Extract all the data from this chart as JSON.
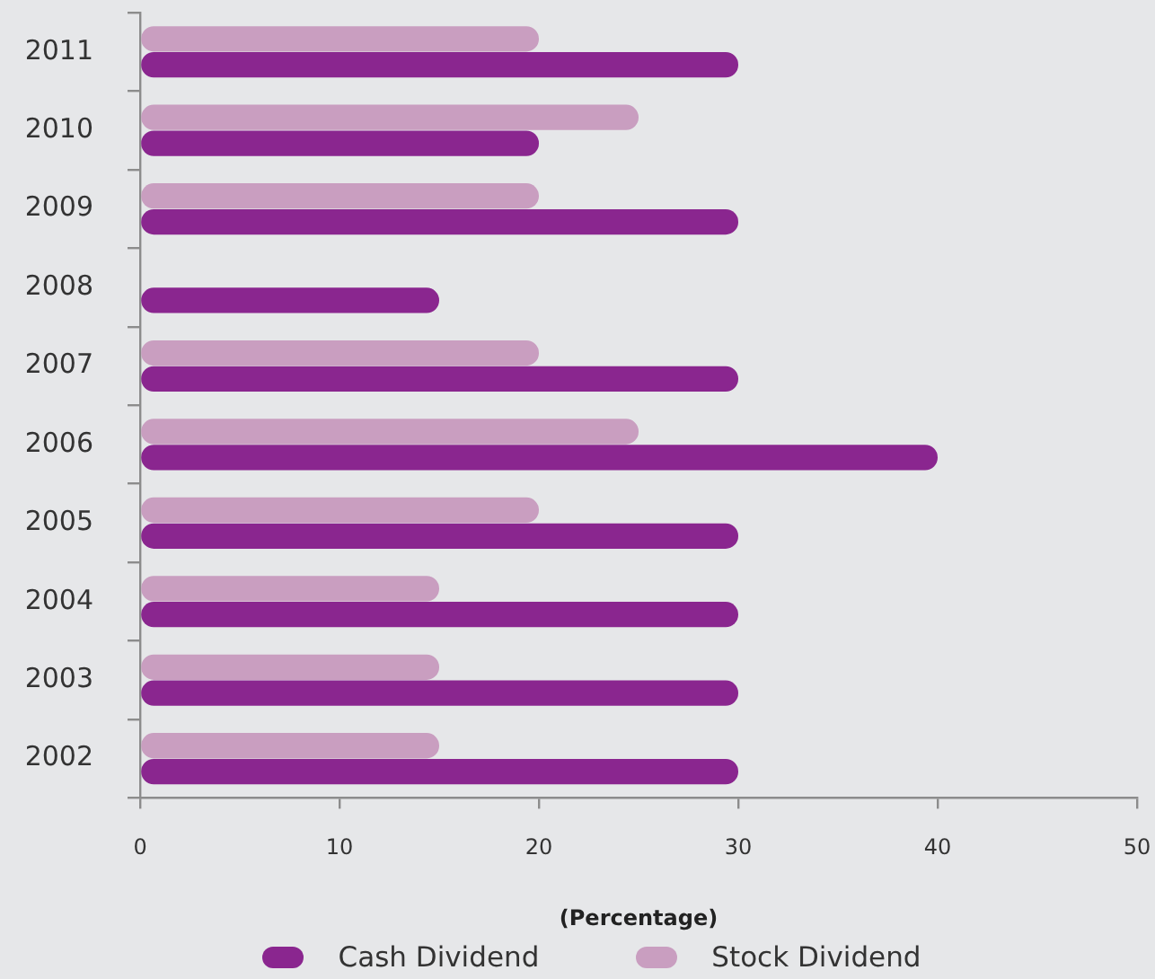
{
  "chart_data": {
    "type": "bar",
    "orientation": "horizontal",
    "categories": [
      "2011",
      "2010",
      "2009",
      "2008",
      "2007",
      "2006",
      "2005",
      "2004",
      "2003",
      "2002"
    ],
    "series": [
      {
        "name": "Cash Dividend",
        "color": "#8a268f",
        "values": [
          30,
          20,
          30,
          15,
          30,
          40,
          30,
          30,
          30,
          30
        ]
      },
      {
        "name": "Stock Dividend",
        "color": "#c99ec0",
        "values": [
          20,
          25,
          20,
          null,
          20,
          25,
          20,
          15,
          15,
          15
        ]
      }
    ],
    "xlim": [
      0,
      50
    ],
    "xticks": [
      0,
      10,
      20,
      30,
      40,
      50
    ],
    "xlabel": "(Percentage)",
    "legend": "bottom"
  }
}
